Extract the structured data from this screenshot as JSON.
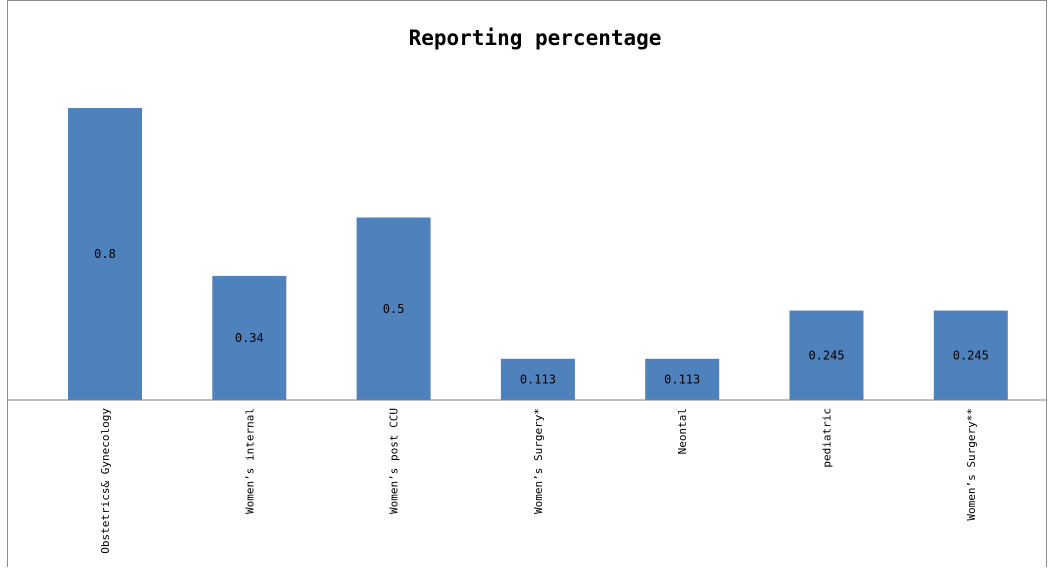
{
  "chart_data": {
    "type": "bar",
    "title": "Reporting percentage",
    "categories": [
      "Obstetrics& Gynecology",
      "Women’s internal",
      "Women’s post CCU",
      "Women’s Surgery*",
      "Neontal",
      "pediatric",
      "Women’s Surgery**"
    ],
    "values": [
      0.8,
      0.34,
      0.5,
      0.113,
      0.113,
      0.245,
      0.245
    ],
    "value_labels": [
      "0.8",
      "0.34",
      "0.5",
      "0.113",
      "0.113",
      "0.245",
      "0.245"
    ],
    "xlabel": "",
    "ylabel": "",
    "ylim": [
      0,
      0.85
    ],
    "grid": false,
    "legend": "none",
    "bar_color": "#4f81bd"
  }
}
